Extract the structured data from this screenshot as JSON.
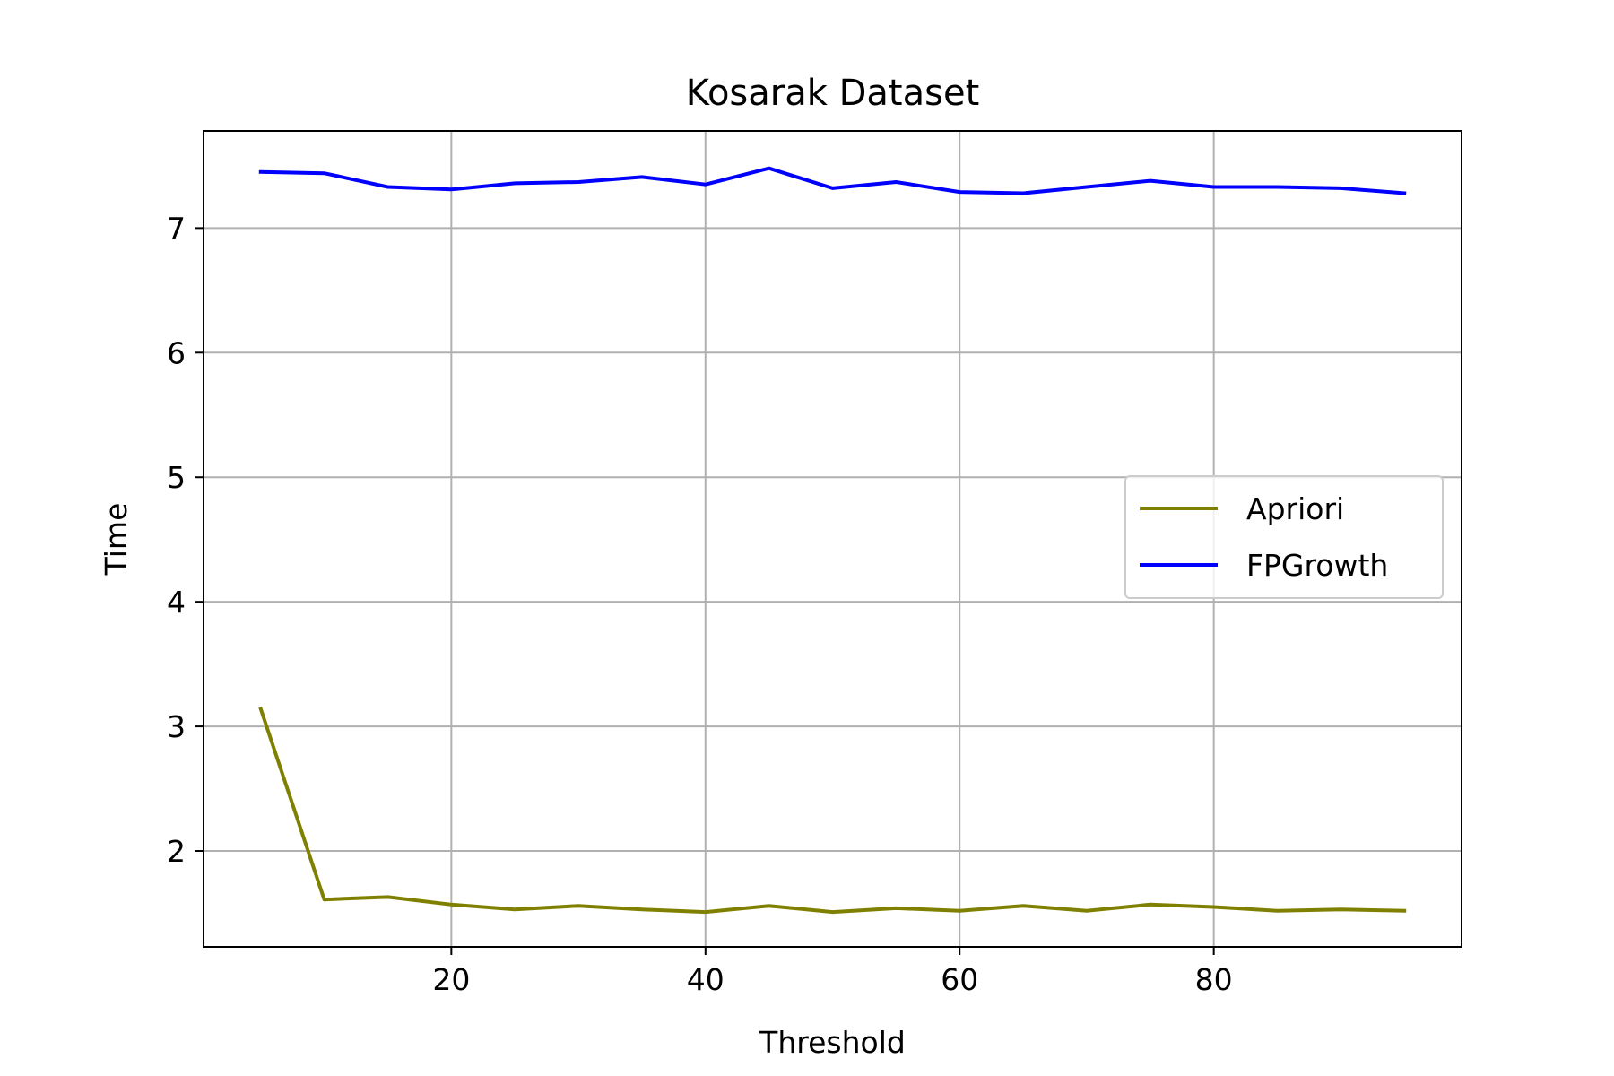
{
  "chart_data": {
    "type": "line",
    "title": "Kosarak Dataset",
    "xlabel": "Threshold",
    "ylabel": "Time",
    "xlim": [
      0.5,
      99.5
    ],
    "ylim": [
      1.23,
      7.78
    ],
    "xticks": [
      20,
      40,
      60,
      80
    ],
    "yticks": [
      2,
      3,
      4,
      5,
      6,
      7
    ],
    "grid": true,
    "legend": {
      "placement": "right"
    },
    "x": [
      5,
      10,
      15,
      20,
      25,
      30,
      35,
      40,
      45,
      50,
      55,
      60,
      65,
      70,
      75,
      80,
      85,
      90,
      95
    ],
    "series": [
      {
        "name": "Apriori",
        "color": "#808000",
        "values": [
          3.14,
          1.61,
          1.63,
          1.57,
          1.53,
          1.56,
          1.53,
          1.51,
          1.56,
          1.51,
          1.54,
          1.52,
          1.56,
          1.52,
          1.57,
          1.55,
          1.52,
          1.53,
          1.52
        ]
      },
      {
        "name": "FPGrowth",
        "color": "#0000ff",
        "values": [
          7.45,
          7.44,
          7.33,
          7.31,
          7.36,
          7.37,
          7.41,
          7.35,
          7.48,
          7.32,
          7.37,
          7.29,
          7.28,
          7.33,
          7.38,
          7.33,
          7.33,
          7.32,
          7.28
        ]
      }
    ]
  }
}
